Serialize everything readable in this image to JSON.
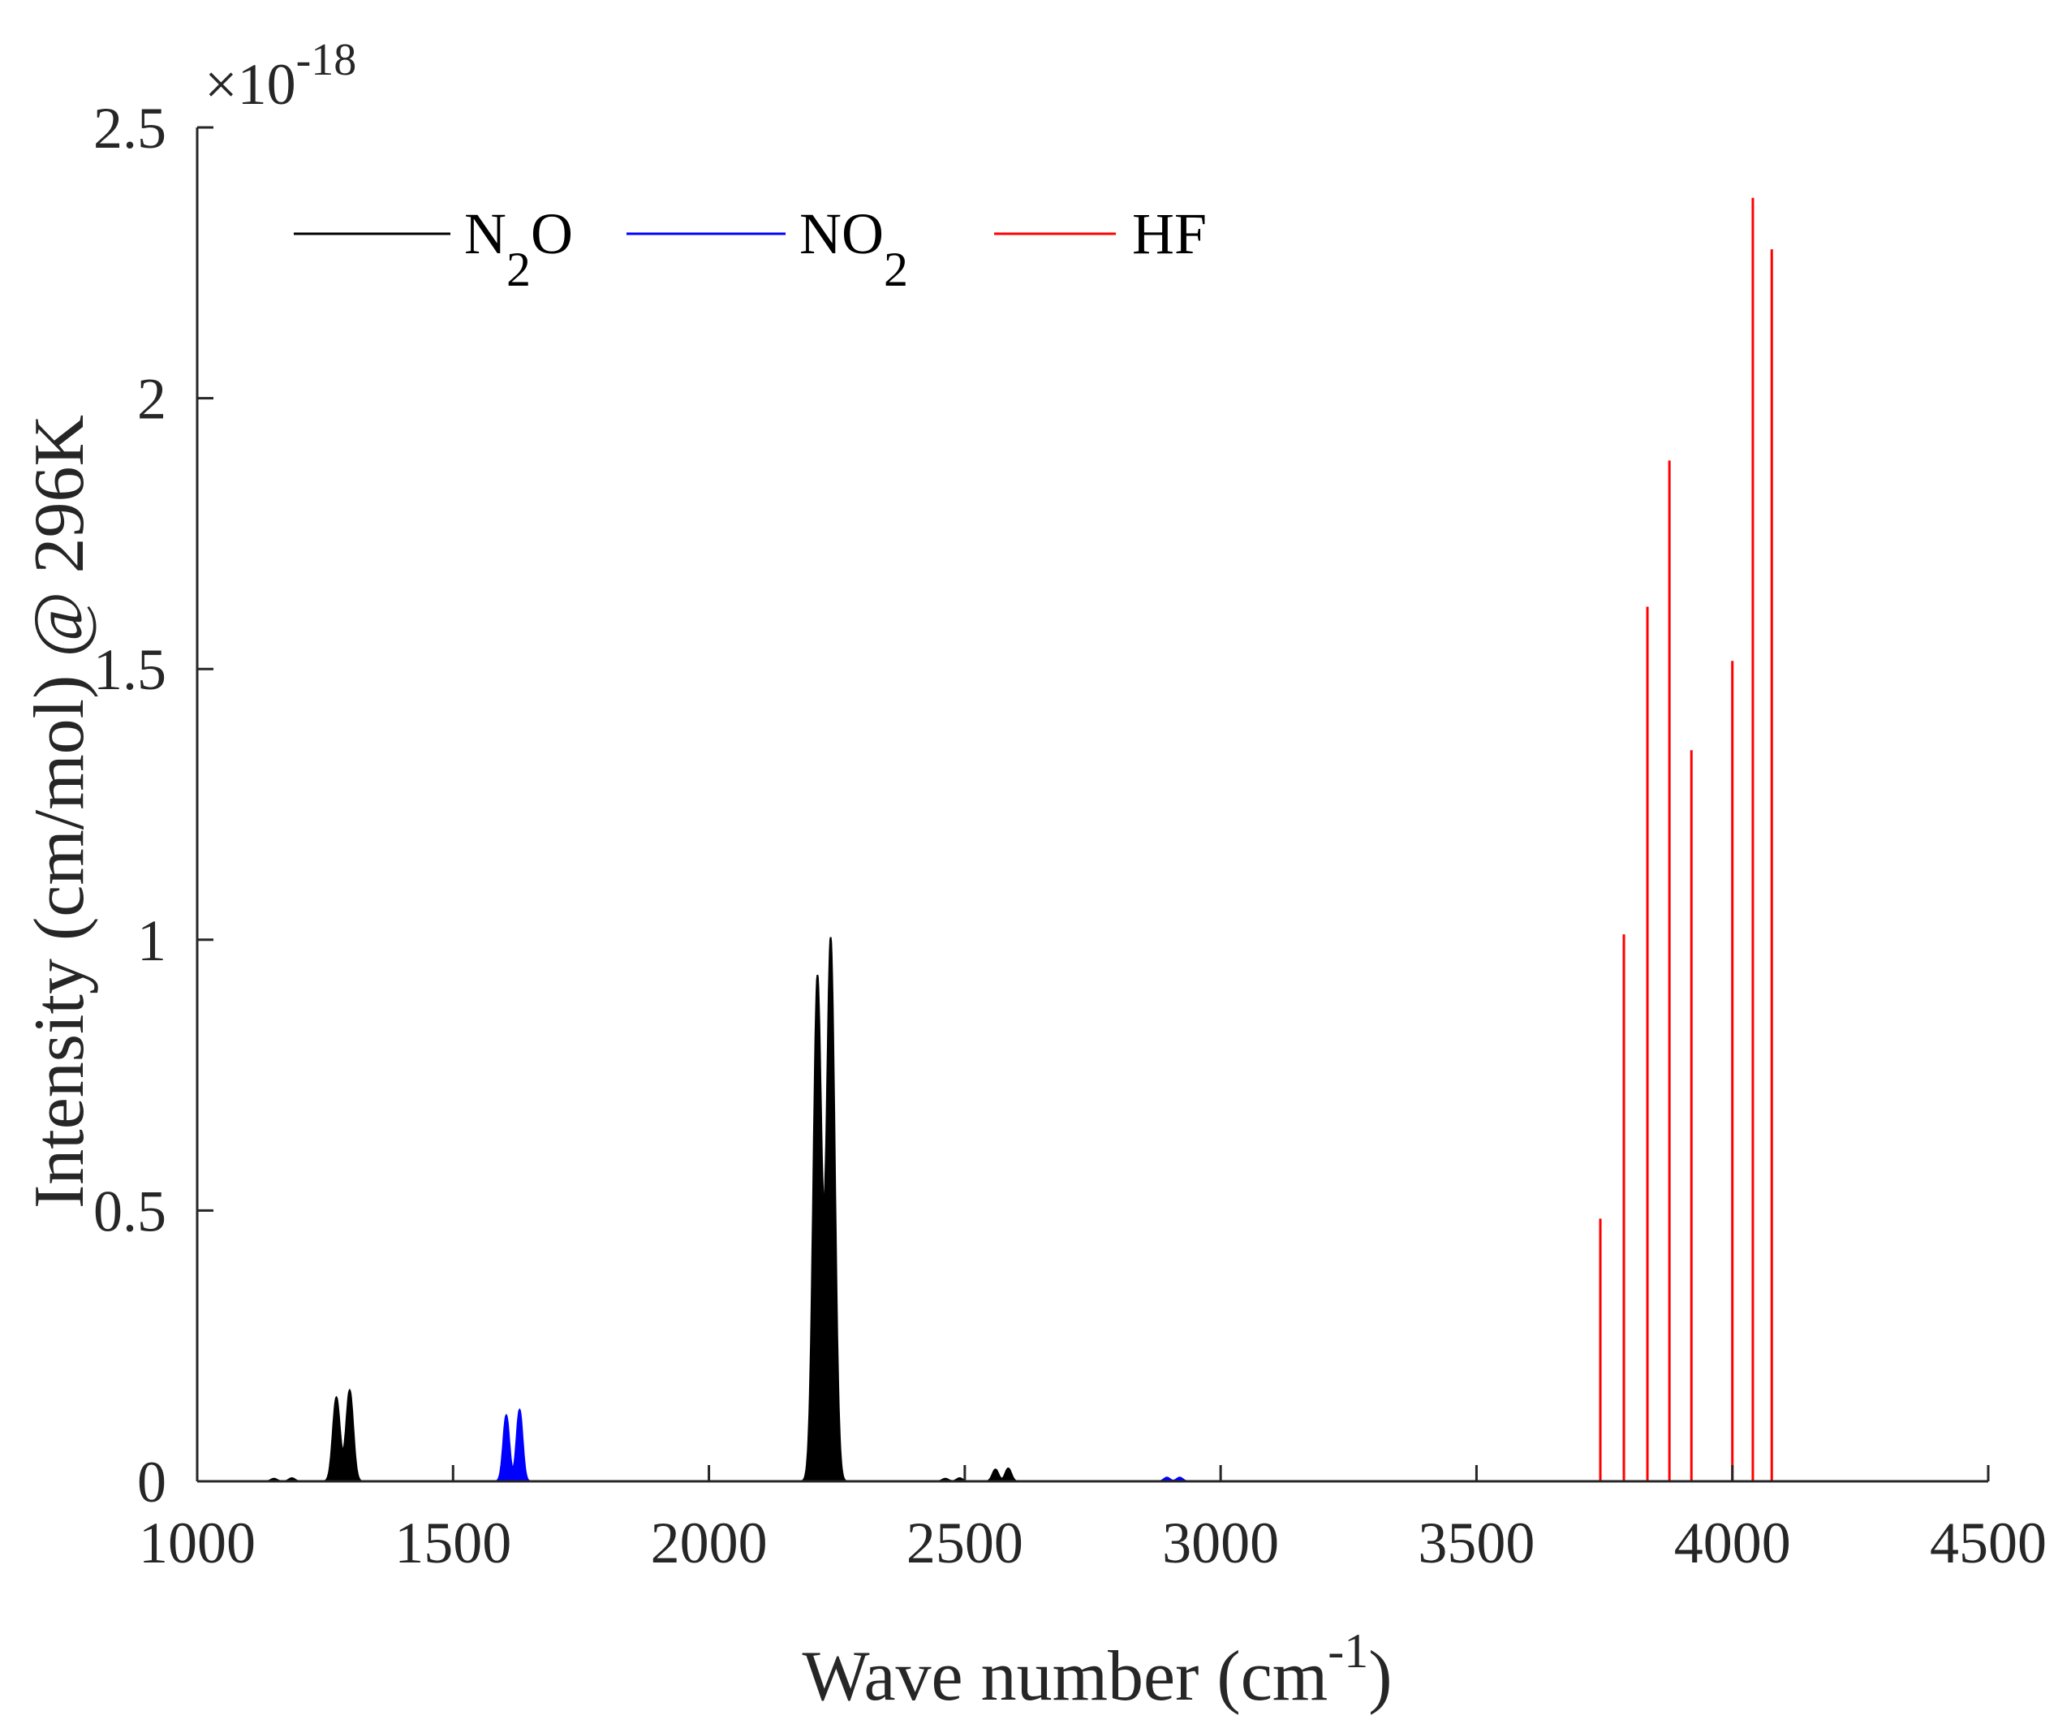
{
  "chart_data": {
    "type": "line",
    "exponent_label": {
      "base": "×10",
      "power": "-18"
    },
    "xlabel": {
      "text": "Wave number (cm",
      "sup": "-1",
      "close": ")"
    },
    "ylabel": "Intensity (cm/mol) @ 296K",
    "xlim": [
      1000,
      4500
    ],
    "ylim": [
      0,
      2.5
    ],
    "x_ticks": [
      1000,
      1500,
      2000,
      2500,
      3000,
      3500,
      4000,
      4500
    ],
    "x_tick_labels": [
      "1000",
      "1500",
      "2000",
      "2500",
      "3000",
      "3500",
      "4000",
      "4500"
    ],
    "y_ticks": [
      0,
      0.5,
      1,
      1.5,
      2,
      2.5
    ],
    "y_tick_labels": [
      "0",
      "0.5",
      "1",
      "1.5",
      "2",
      "2.5"
    ],
    "grid": false,
    "legend_position": "top-left, horizontal",
    "legend": [
      {
        "name_main": "N",
        "name_sub": "2",
        "name_tail": "O"
      },
      {
        "name_main": "NO",
        "name_sub": "2",
        "name_tail": ""
      },
      {
        "name_main": "HF",
        "name_sub": "",
        "name_tail": ""
      }
    ],
    "series": [
      {
        "name": "N2O",
        "color": "#000000",
        "style": "filled band peaks",
        "x_range": [
          1000,
          3000
        ],
        "peaks": [
          {
            "x": 1150,
            "y": 0.005,
            "w": 6
          },
          {
            "x": 1185,
            "y": 0.006,
            "w": 6
          },
          {
            "x": 1272,
            "y": 0.155,
            "w": 7
          },
          {
            "x": 1298,
            "y": 0.168,
            "w": 7
          },
          {
            "x": 2212,
            "y": 0.93,
            "w": 8
          },
          {
            "x": 2238,
            "y": 1.0,
            "w": 8
          },
          {
            "x": 2462,
            "y": 0.005,
            "w": 6
          },
          {
            "x": 2490,
            "y": 0.006,
            "w": 6
          },
          {
            "x": 2560,
            "y": 0.022,
            "w": 6
          },
          {
            "x": 2585,
            "y": 0.024,
            "w": 6
          }
        ]
      },
      {
        "name": "NO2",
        "color": "#0000ff",
        "style": "filled band peaks",
        "x_range": [
          1000,
          3000
        ],
        "peaks": [
          {
            "x": 1604,
            "y": 0.122,
            "w": 6
          },
          {
            "x": 1630,
            "y": 0.132,
            "w": 6
          },
          {
            "x": 2895,
            "y": 0.007,
            "w": 6
          },
          {
            "x": 2920,
            "y": 0.007,
            "w": 6
          }
        ]
      },
      {
        "name": "HF",
        "color": "#ff0000",
        "style": "stick lines",
        "lines": [
          {
            "x": 3742,
            "y": 0.485
          },
          {
            "x": 3788,
            "y": 1.01
          },
          {
            "x": 3834,
            "y": 1.615
          },
          {
            "x": 3877,
            "y": 1.885
          },
          {
            "x": 3920,
            "y": 1.35
          },
          {
            "x": 4000,
            "y": 1.515
          },
          {
            "x": 4040,
            "y": 2.37
          },
          {
            "x": 4077,
            "y": 2.275
          }
        ]
      }
    ]
  }
}
